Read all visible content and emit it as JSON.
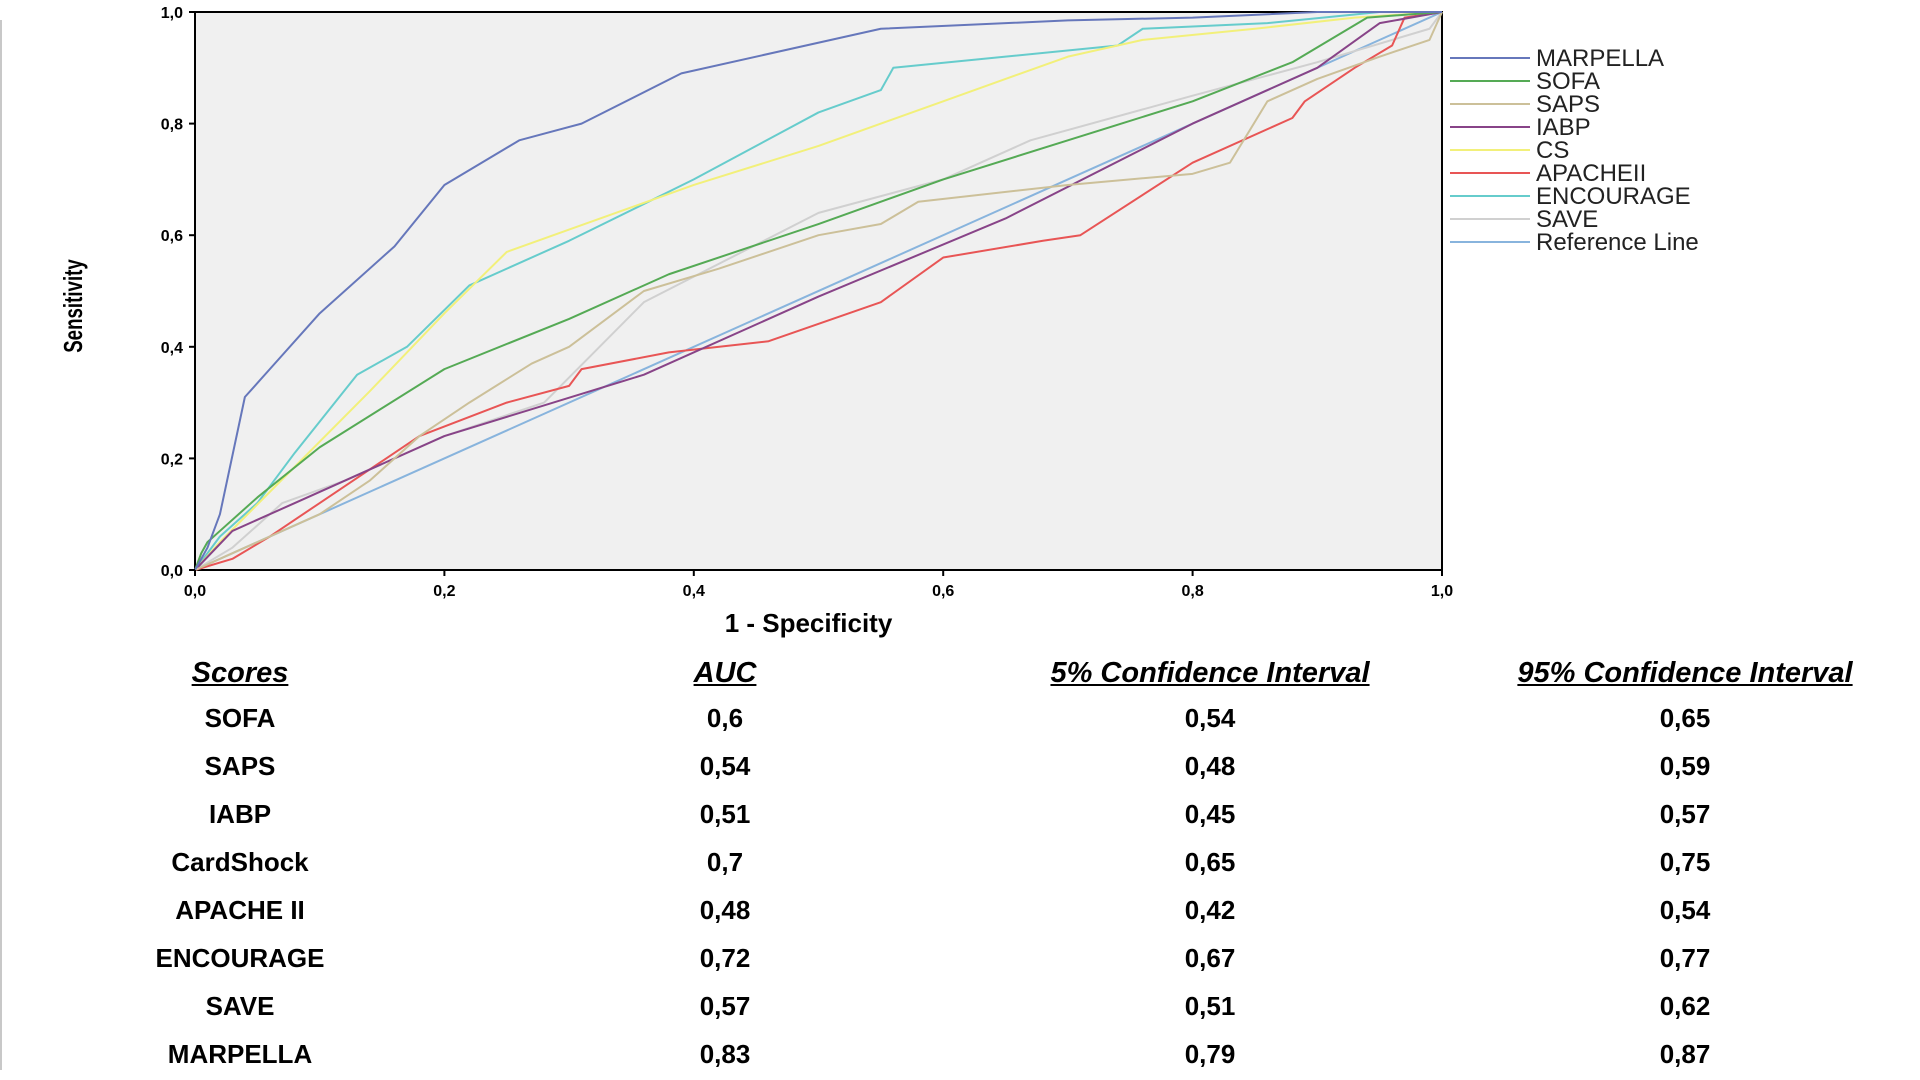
{
  "chart_data": {
    "type": "line",
    "xlabel": "1 - Specificity",
    "ylabel": "Sensitivity",
    "xlim": [
      0,
      1
    ],
    "ylim": [
      0,
      1
    ],
    "x_ticks": [
      "0,0",
      "0,2",
      "0,4",
      "0,6",
      "0,8",
      "1,0"
    ],
    "y_ticks": [
      "0,0",
      "0,2",
      "0,4",
      "0,6",
      "0,8",
      "1,0"
    ],
    "grid": false,
    "legend_position": "right",
    "plot_background": "#f0f0f0",
    "series": [
      {
        "name": "MARPELLA",
        "color": "#6677bb",
        "x": [
          0,
          0.01,
          0.02,
          0.04,
          0.06,
          0.1,
          0.16,
          0.2,
          0.26,
          0.31,
          0.39,
          0.55,
          0.7,
          0.8,
          0.9,
          1.0
        ],
        "y": [
          0,
          0.04,
          0.1,
          0.31,
          0.36,
          0.46,
          0.58,
          0.69,
          0.77,
          0.8,
          0.89,
          0.97,
          0.985,
          0.99,
          1.0,
          1.0
        ]
      },
      {
        "name": "SOFA",
        "color": "#55aa55",
        "x": [
          0,
          0.005,
          0.01,
          0.02,
          0.05,
          0.1,
          0.2,
          0.3,
          0.38,
          0.5,
          0.6,
          0.7,
          0.8,
          0.88,
          0.94,
          1.0
        ],
        "y": [
          0,
          0.03,
          0.05,
          0.07,
          0.13,
          0.22,
          0.36,
          0.45,
          0.53,
          0.62,
          0.7,
          0.77,
          0.84,
          0.91,
          0.99,
          1.0
        ]
      },
      {
        "name": "SAPS",
        "color": "#ccc099",
        "x": [
          0,
          0.02,
          0.06,
          0.1,
          0.14,
          0.18,
          0.22,
          0.27,
          0.3,
          0.36,
          0.42,
          0.5,
          0.55,
          0.58,
          0.7,
          0.8,
          0.83,
          0.86,
          0.9,
          0.95,
          0.99,
          1.0
        ],
        "y": [
          0,
          0.02,
          0.06,
          0.1,
          0.16,
          0.24,
          0.3,
          0.37,
          0.4,
          0.5,
          0.54,
          0.6,
          0.62,
          0.66,
          0.69,
          0.71,
          0.73,
          0.84,
          0.88,
          0.92,
          0.95,
          1.0
        ]
      },
      {
        "name": "IABP",
        "color": "#884488",
        "x": [
          0,
          0.03,
          0.08,
          0.2,
          0.36,
          0.5,
          0.65,
          0.8,
          0.9,
          0.95,
          1.0
        ],
        "y": [
          0,
          0.07,
          0.12,
          0.24,
          0.35,
          0.49,
          0.63,
          0.8,
          0.9,
          0.98,
          1.0
        ]
      },
      {
        "name": "CS",
        "color": "#f2f07a",
        "x": [
          0,
          0.02,
          0.06,
          0.14,
          0.2,
          0.25,
          0.3,
          0.4,
          0.5,
          0.6,
          0.7,
          0.76,
          0.85,
          0.93,
          1.0
        ],
        "y": [
          0,
          0.05,
          0.14,
          0.32,
          0.46,
          0.57,
          0.61,
          0.69,
          0.76,
          0.84,
          0.92,
          0.95,
          0.97,
          0.99,
          1.0
        ]
      },
      {
        "name": "APACHEII",
        "color": "#e85555",
        "x": [
          0,
          0.03,
          0.06,
          0.1,
          0.18,
          0.25,
          0.3,
          0.31,
          0.38,
          0.46,
          0.55,
          0.6,
          0.68,
          0.71,
          0.8,
          0.88,
          0.89,
          0.93,
          0.96,
          0.97,
          1.0
        ],
        "y": [
          0,
          0.02,
          0.06,
          0.12,
          0.24,
          0.3,
          0.33,
          0.36,
          0.39,
          0.41,
          0.48,
          0.56,
          0.59,
          0.6,
          0.73,
          0.81,
          0.84,
          0.9,
          0.94,
          0.99,
          1.0
        ]
      },
      {
        "name": "ENCOURAGE",
        "color": "#66cccc",
        "x": [
          0,
          0.02,
          0.05,
          0.08,
          0.13,
          0.17,
          0.22,
          0.3,
          0.4,
          0.5,
          0.55,
          0.56,
          0.65,
          0.74,
          0.76,
          0.86,
          0.95,
          1.0
        ],
        "y": [
          0,
          0.06,
          0.12,
          0.21,
          0.35,
          0.4,
          0.51,
          0.59,
          0.7,
          0.82,
          0.86,
          0.9,
          0.92,
          0.94,
          0.97,
          0.98,
          1.0,
          1.0
        ]
      },
      {
        "name": "SAVE",
        "color": "#d0d0d0",
        "x": [
          0,
          0.03,
          0.07,
          0.12,
          0.2,
          0.28,
          0.36,
          0.5,
          0.6,
          0.67,
          0.8,
          0.9,
          0.99,
          1.0
        ],
        "y": [
          0,
          0.04,
          0.12,
          0.16,
          0.24,
          0.3,
          0.48,
          0.64,
          0.7,
          0.77,
          0.85,
          0.91,
          0.97,
          1.0
        ]
      },
      {
        "name": "Reference Line",
        "color": "#88b4dd",
        "x": [
          0,
          1
        ],
        "y": [
          0,
          1
        ]
      }
    ]
  },
  "table": {
    "headers": [
      "Scores",
      "AUC",
      "5% Confidence Interval",
      "95% Confidence Interval"
    ],
    "rows": [
      [
        "SOFA",
        "0,6",
        "0,54",
        "0,65"
      ],
      [
        "SAPS",
        "0,54",
        "0,48",
        "0,59"
      ],
      [
        "IABP",
        "0,51",
        "0,45",
        "0,57"
      ],
      [
        "CardShock",
        "0,7",
        "0,65",
        "0,75"
      ],
      [
        "APACHE II",
        "0,48",
        "0,42",
        "0,54"
      ],
      [
        "ENCOURAGE",
        "0,72",
        "0,67",
        "0,77"
      ],
      [
        "SAVE",
        "0,57",
        "0,51",
        "0,62"
      ],
      [
        "MARPELLA",
        "0,83",
        "0,79",
        "0,87"
      ]
    ]
  }
}
